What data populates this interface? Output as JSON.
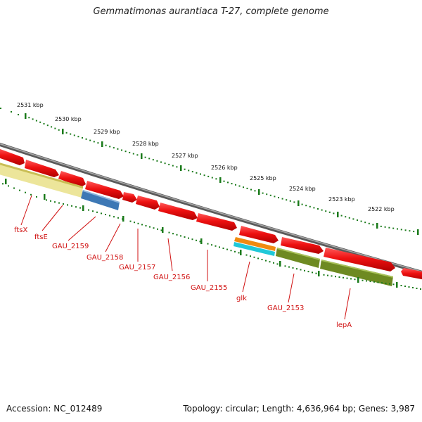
{
  "title": "Gemmatimonas aurantiaca T-27, complete genome",
  "accession": "Accession: NC_012489",
  "summary": "Topology: circular; Length: 4,636,964 bp; Genes: 3,987",
  "colors": {
    "backbone": "#7a7a7a",
    "tick": "#1a7a1a",
    "gene_red": "#ee1111",
    "label_red": "#d01010",
    "yellow": "#ece59a",
    "blue": "#3d78b5",
    "orange": "#f08a10",
    "cyan": "#20c8d8",
    "olive": "#6e8a22"
  },
  "scale_labels": [
    "2531 kbp",
    "2530 kbp",
    "2529 kbp",
    "2528 kbp",
    "2527 kbp",
    "2526 kbp",
    "2525 kbp",
    "2524 kbp",
    "2523 kbp",
    "2522 kbp"
  ],
  "gene_labels": [
    "ftsX",
    "ftsE",
    "GAU_2159",
    "GAU_2158",
    "GAU_2157",
    "GAU_2156",
    "GAU_2155",
    "glk",
    "GAU_2153",
    "lepA"
  ]
}
